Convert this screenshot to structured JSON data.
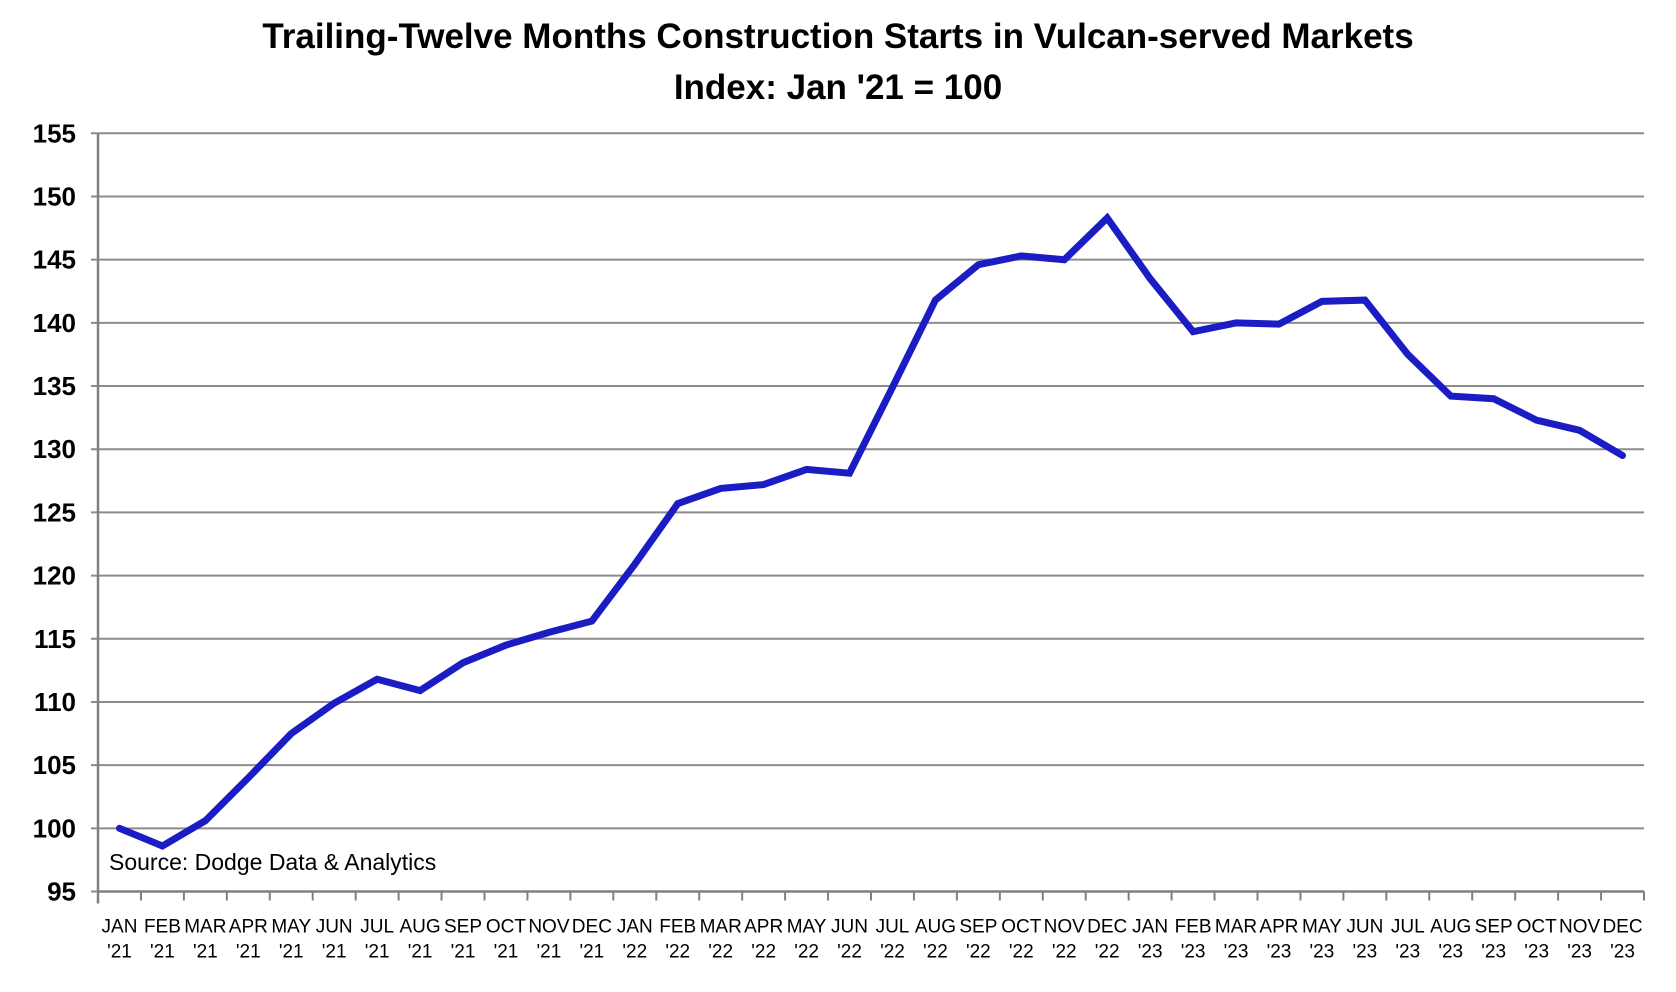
{
  "chart_data": {
    "type": "line",
    "title": "Trailing-Twelve Months Construction Starts in Vulcan-served Markets",
    "subtitle": "Index: Jan '21 = 100",
    "source_note": "Source: Dodge Data & Analytics",
    "grid": "horizontal",
    "legend_position": "none",
    "ylim": [
      95,
      155
    ],
    "yticks": [
      95,
      100,
      105,
      110,
      115,
      120,
      125,
      130,
      135,
      140,
      145,
      150,
      155
    ],
    "categories": [
      {
        "month": "JAN",
        "year": "'21"
      },
      {
        "month": "FEB",
        "year": "'21"
      },
      {
        "month": "MAR",
        "year": "'21"
      },
      {
        "month": "APR",
        "year": "'21"
      },
      {
        "month": "MAY",
        "year": "'21"
      },
      {
        "month": "JUN",
        "year": "'21"
      },
      {
        "month": "JUL",
        "year": "'21"
      },
      {
        "month": "AUG",
        "year": "'21"
      },
      {
        "month": "SEP",
        "year": "'21"
      },
      {
        "month": "OCT",
        "year": "'21"
      },
      {
        "month": "NOV",
        "year": "'21"
      },
      {
        "month": "DEC",
        "year": "'21"
      },
      {
        "month": "JAN",
        "year": "'22"
      },
      {
        "month": "FEB",
        "year": "'22"
      },
      {
        "month": "MAR",
        "year": "'22"
      },
      {
        "month": "APR",
        "year": "'22"
      },
      {
        "month": "MAY",
        "year": "'22"
      },
      {
        "month": "JUN",
        "year": "'22"
      },
      {
        "month": "JUL",
        "year": "'22"
      },
      {
        "month": "AUG",
        "year": "'22"
      },
      {
        "month": "SEP",
        "year": "'22"
      },
      {
        "month": "OCT",
        "year": "'22"
      },
      {
        "month": "NOV",
        "year": "'22"
      },
      {
        "month": "DEC",
        "year": "'22"
      },
      {
        "month": "JAN",
        "year": "'23"
      },
      {
        "month": "FEB",
        "year": "'23"
      },
      {
        "month": "MAR",
        "year": "'23"
      },
      {
        "month": "APR",
        "year": "'23"
      },
      {
        "month": "MAY",
        "year": "'23"
      },
      {
        "month": "JUN",
        "year": "'23"
      },
      {
        "month": "JUL",
        "year": "'23"
      },
      {
        "month": "AUG",
        "year": "'23"
      },
      {
        "month": "SEP",
        "year": "'23"
      },
      {
        "month": "OCT",
        "year": "'23"
      },
      {
        "month": "NOV",
        "year": "'23"
      },
      {
        "month": "DEC",
        "year": "'23"
      }
    ],
    "series": [
      {
        "color": "#1c1cc4",
        "values": [
          100.0,
          98.6,
          100.6,
          104.0,
          107.5,
          109.9,
          111.8,
          110.9,
          113.1,
          114.5,
          115.5,
          116.4,
          120.9,
          125.7,
          126.9,
          127.2,
          128.4,
          128.1,
          134.9,
          141.8,
          144.6,
          145.3,
          145.0,
          148.3,
          143.5,
          139.3,
          140.0,
          139.9,
          141.7,
          141.8,
          137.5,
          134.2,
          134.0,
          132.3,
          131.5,
          129.5
        ]
      }
    ]
  },
  "colors": {
    "grid": "#8c8c8c",
    "axis": "#808080",
    "text": "#000000",
    "background": "#ffffff"
  }
}
